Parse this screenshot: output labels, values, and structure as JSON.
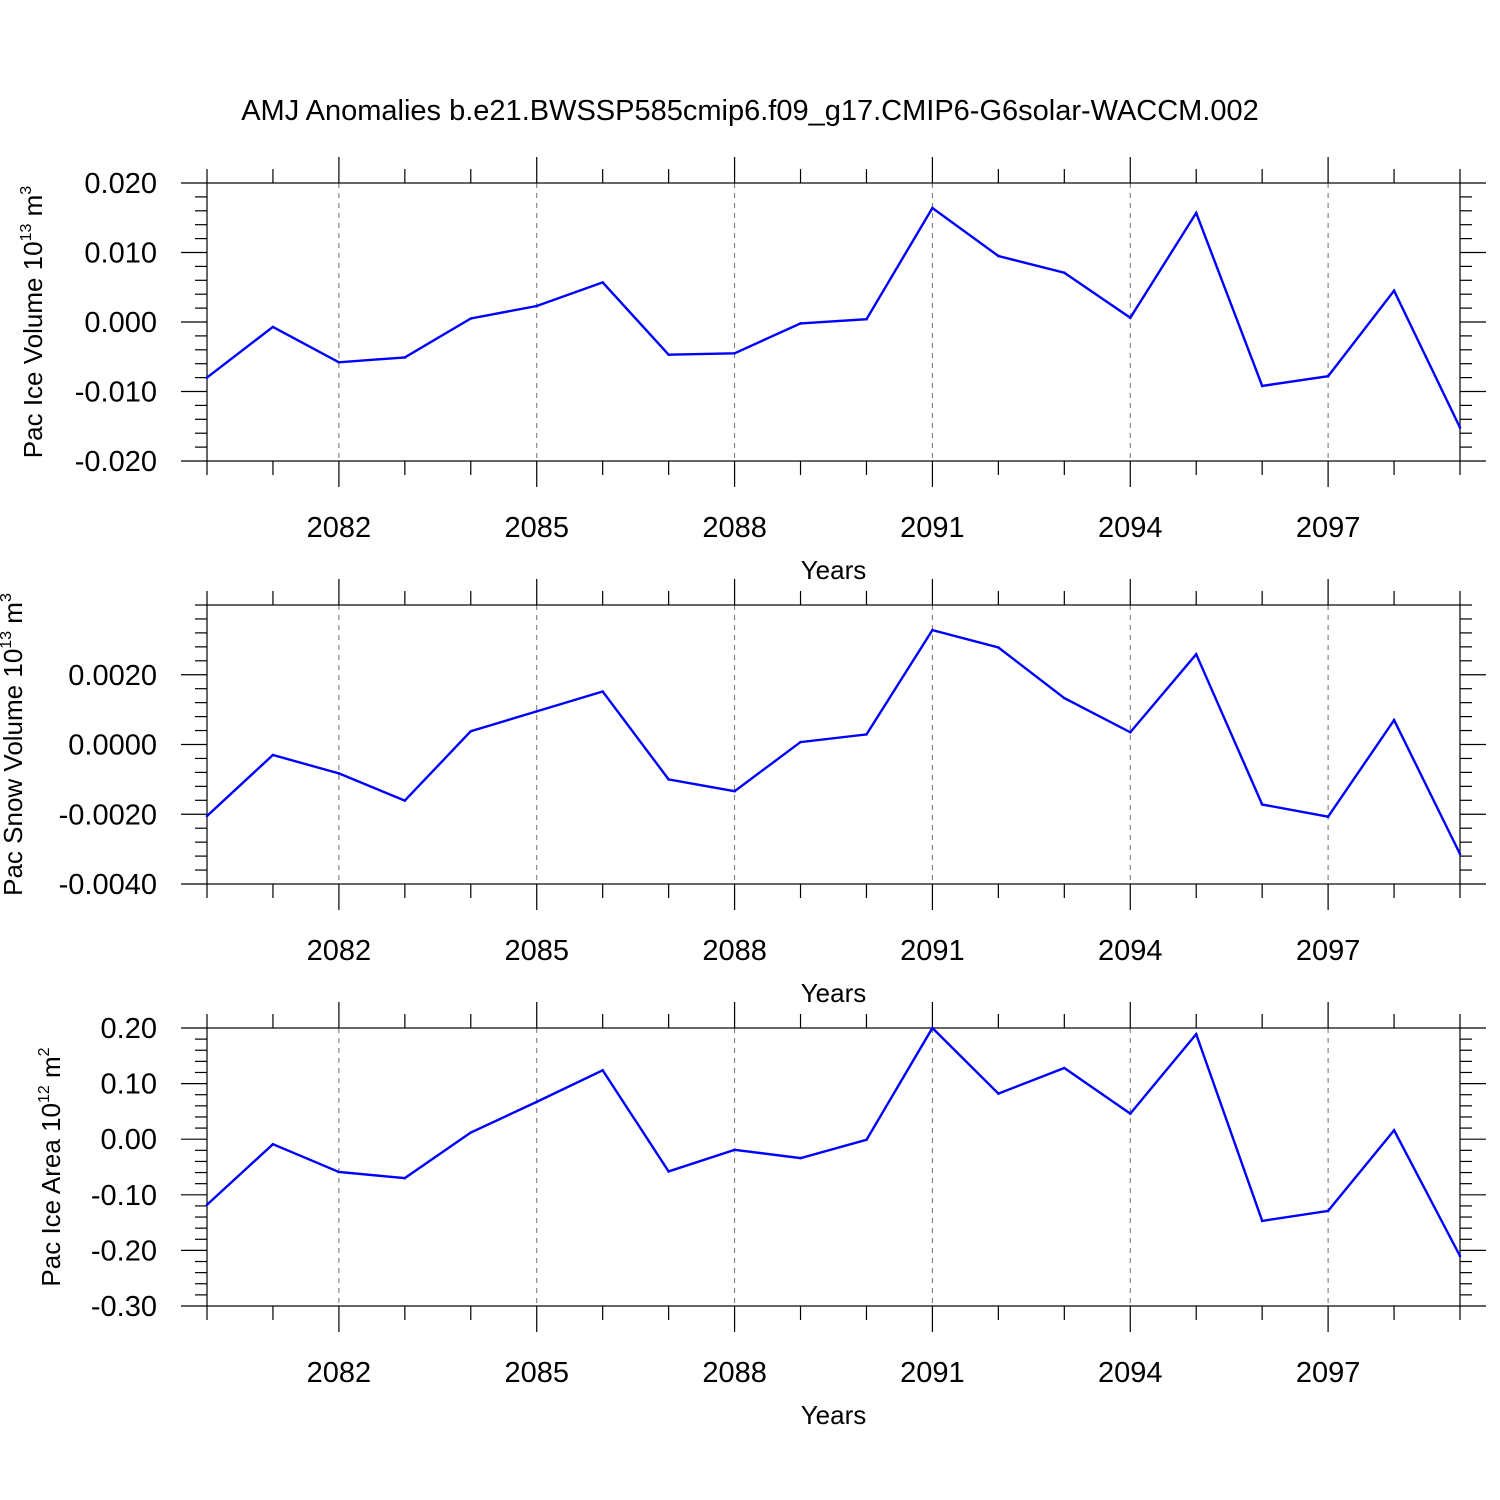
{
  "title": "AMJ Anomalies b.e21.BWSSP585cmip6.f09_g17.CMIP6-G6solar-WACCM.002",
  "line_color": "#0000ff",
  "chart_data": [
    {
      "type": "line",
      "ylabel_main": "Pac Ice Volume 10",
      "ylabel_exp": "13",
      "ylabel_unit": " m",
      "ylabel_unit_exp": "3",
      "xlabel": "Years",
      "xlim": [
        2080,
        2099
      ],
      "ylim": [
        -0.02,
        0.02
      ],
      "x_major_ticks": [
        2082,
        2085,
        2088,
        2091,
        2094,
        2097
      ],
      "x_tick_labels": [
        "2082",
        "2085",
        "2088",
        "2091",
        "2094",
        "2097"
      ],
      "y_major_ticks": [
        -0.02,
        -0.01,
        0.0,
        0.01,
        0.02
      ],
      "y_tick_labels": [
        "-0.020",
        "-0.010",
        "0.000",
        "0.010",
        "0.020"
      ],
      "y_minor_step": 0.002,
      "grid": "vertical dashed at major x ticks",
      "series": [
        {
          "name": "Pac Ice Volume anomaly",
          "x": [
            2080,
            2081,
            2082,
            2083,
            2084,
            2085,
            2086,
            2087,
            2088,
            2089,
            2090,
            2091,
            2092,
            2093,
            2094,
            2095,
            2096,
            2097,
            2098,
            2099
          ],
          "values": [
            -0.008,
            -0.0007,
            -0.0058,
            -0.0051,
            0.0005,
            0.0023,
            0.0057,
            -0.0047,
            -0.0045,
            -0.0002,
            0.0004,
            0.0164,
            0.0095,
            0.0071,
            0.0006,
            0.0157,
            -0.0092,
            -0.0078,
            0.0045,
            -0.0152
          ]
        }
      ]
    },
    {
      "type": "line",
      "ylabel_main": "Pac Snow Volume 10",
      "ylabel_exp": "13",
      "ylabel_unit": " m",
      "ylabel_unit_exp": "3",
      "xlabel": "Years",
      "xlim": [
        2080,
        2099
      ],
      "ylim": [
        -0.004,
        0.004
      ],
      "x_major_ticks": [
        2082,
        2085,
        2088,
        2091,
        2094,
        2097
      ],
      "x_tick_labels": [
        "2082",
        "2085",
        "2088",
        "2091",
        "2094",
        "2097"
      ],
      "y_major_ticks": [
        -0.004,
        -0.002,
        0.0,
        0.002
      ],
      "y_tick_labels": [
        "-0.0040",
        "-0.0020",
        "0.0000",
        "0.0020"
      ],
      "y_minor_step": 0.0004,
      "grid": "vertical dashed at major x ticks",
      "series": [
        {
          "name": "Pac Snow Volume anomaly",
          "x": [
            2080,
            2081,
            2082,
            2083,
            2084,
            2085,
            2086,
            2087,
            2088,
            2089,
            2090,
            2091,
            2092,
            2093,
            2094,
            2095,
            2096,
            2097,
            2098,
            2099
          ],
          "values": [
            -0.00205,
            -0.0003,
            -0.00083,
            -0.00161,
            0.00038,
            0.00095,
            0.00152,
            -0.001,
            -0.00134,
            7e-05,
            0.00029,
            0.00328,
            0.00278,
            0.00133,
            0.00035,
            0.00259,
            -0.00172,
            -0.00207,
            0.0007,
            -0.00314
          ]
        }
      ]
    },
    {
      "type": "line",
      "ylabel_main": "Pac Ice Area 10",
      "ylabel_exp": "12",
      "ylabel_unit": " m",
      "ylabel_unit_exp": "2",
      "xlabel": "Years",
      "xlim": [
        2080,
        2099
      ],
      "ylim": [
        -0.3,
        0.2
      ],
      "x_major_ticks": [
        2082,
        2085,
        2088,
        2091,
        2094,
        2097
      ],
      "x_tick_labels": [
        "2082",
        "2085",
        "2088",
        "2091",
        "2094",
        "2097"
      ],
      "y_major_ticks": [
        -0.3,
        -0.2,
        -0.1,
        0.0,
        0.1,
        0.2
      ],
      "y_tick_labels": [
        "-0.30",
        "-0.20",
        "-0.10",
        "0.00",
        "0.10",
        "0.20"
      ],
      "y_minor_step": 0.02,
      "grid": "vertical dashed at major x ticks",
      "series": [
        {
          "name": "Pac Ice Area anomaly",
          "x": [
            2080,
            2081,
            2082,
            2083,
            2084,
            2085,
            2086,
            2087,
            2088,
            2089,
            2090,
            2091,
            2092,
            2093,
            2094,
            2095,
            2096,
            2097,
            2098,
            2099
          ],
          "values": [
            -0.118,
            -0.009,
            -0.059,
            -0.07,
            0.012,
            0.067,
            0.124,
            -0.058,
            -0.019,
            -0.034,
            -0.001,
            0.2,
            0.082,
            0.128,
            0.046,
            0.189,
            -0.147,
            -0.129,
            0.016,
            -0.21
          ]
        }
      ]
    }
  ]
}
